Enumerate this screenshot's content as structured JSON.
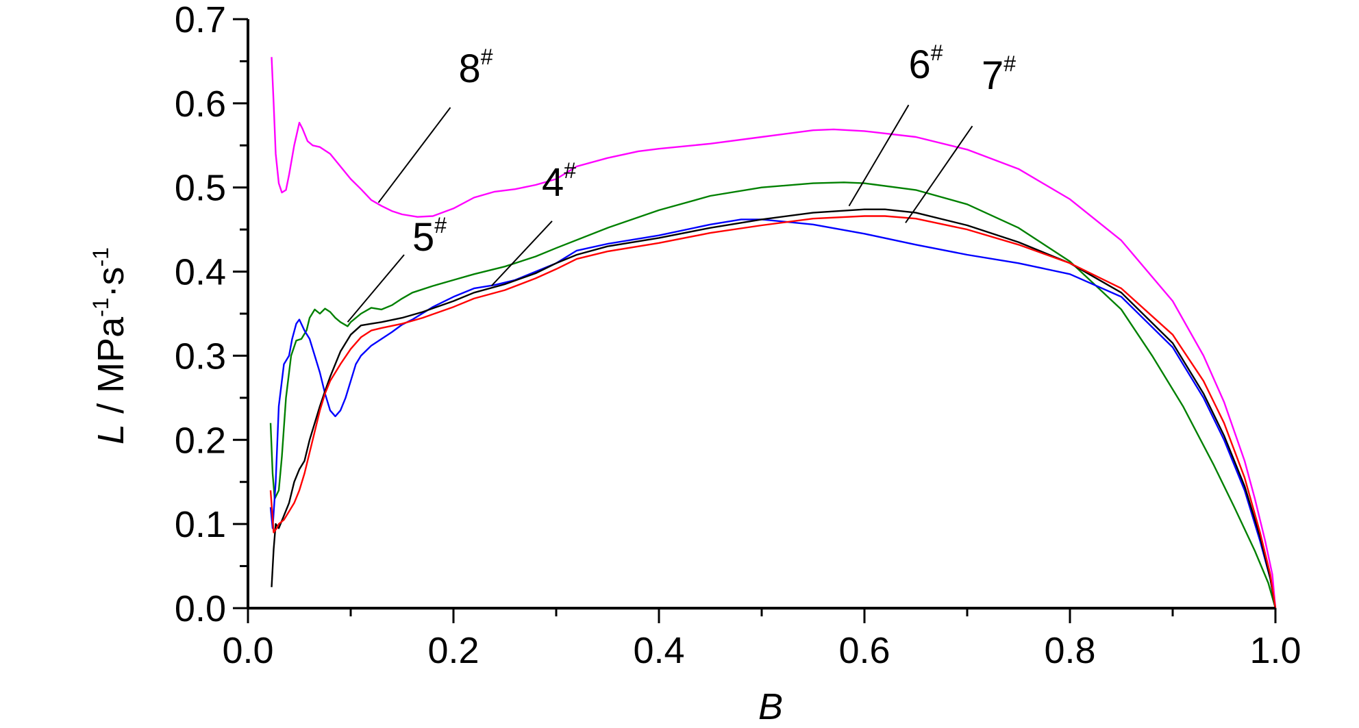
{
  "chart_data": {
    "type": "line",
    "xlabel": "B",
    "ylabel": {
      "var": "L",
      "sep": " / MPa",
      "exp1": "-1",
      "mid": "·s",
      "exp2": "-1"
    },
    "xlim": [
      0.0,
      1.0
    ],
    "ylim": [
      0.0,
      0.7
    ],
    "xticks": [
      "0.0",
      "0.2",
      "0.4",
      "0.6",
      "0.8",
      "1.0"
    ],
    "yticks": [
      "0.0",
      "0.1",
      "0.2",
      "0.3",
      "0.4",
      "0.5",
      "0.6",
      "0.7"
    ],
    "grid": false,
    "legend": "none",
    "series": [
      {
        "name": "8#",
        "label_num": "8",
        "label_sup": "#",
        "color": "#ff00ff",
        "label_pos": [
          0.205,
          0.625
        ],
        "leader": [
          [
            0.197,
            0.595
          ],
          [
            0.127,
            0.482
          ]
        ],
        "points": [
          [
            0.023,
            0.655
          ],
          [
            0.025,
            0.6
          ],
          [
            0.027,
            0.54
          ],
          [
            0.03,
            0.505
          ],
          [
            0.033,
            0.494
          ],
          [
            0.037,
            0.497
          ],
          [
            0.04,
            0.515
          ],
          [
            0.045,
            0.55
          ],
          [
            0.05,
            0.577
          ],
          [
            0.053,
            0.57
          ],
          [
            0.058,
            0.555
          ],
          [
            0.063,
            0.55
          ],
          [
            0.07,
            0.548
          ],
          [
            0.08,
            0.54
          ],
          [
            0.09,
            0.525
          ],
          [
            0.1,
            0.51
          ],
          [
            0.11,
            0.498
          ],
          [
            0.12,
            0.485
          ],
          [
            0.13,
            0.478
          ],
          [
            0.14,
            0.472
          ],
          [
            0.15,
            0.468
          ],
          [
            0.165,
            0.465
          ],
          [
            0.18,
            0.466
          ],
          [
            0.2,
            0.475
          ],
          [
            0.22,
            0.488
          ],
          [
            0.24,
            0.495
          ],
          [
            0.26,
            0.498
          ],
          [
            0.28,
            0.503
          ],
          [
            0.3,
            0.51
          ],
          [
            0.32,
            0.525
          ],
          [
            0.35,
            0.535
          ],
          [
            0.38,
            0.543
          ],
          [
            0.4,
            0.546
          ],
          [
            0.45,
            0.552
          ],
          [
            0.5,
            0.56
          ],
          [
            0.55,
            0.568
          ],
          [
            0.57,
            0.569
          ],
          [
            0.6,
            0.567
          ],
          [
            0.65,
            0.56
          ],
          [
            0.7,
            0.545
          ],
          [
            0.75,
            0.522
          ],
          [
            0.8,
            0.486
          ],
          [
            0.85,
            0.437
          ],
          [
            0.9,
            0.365
          ],
          [
            0.93,
            0.3
          ],
          [
            0.95,
            0.245
          ],
          [
            0.97,
            0.175
          ],
          [
            0.98,
            0.13
          ],
          [
            0.99,
            0.08
          ],
          [
            0.997,
            0.04
          ],
          [
            1.0,
            0.0
          ]
        ]
      },
      {
        "name": "5#",
        "label_num": "5",
        "label_sup": "#",
        "color": "#008000",
        "label_pos": [
          0.16,
          0.425
        ],
        "leader": [
          [
            0.152,
            0.42
          ],
          [
            0.097,
            0.34
          ]
        ],
        "points": [
          [
            0.022,
            0.22
          ],
          [
            0.024,
            0.16
          ],
          [
            0.026,
            0.13
          ],
          [
            0.03,
            0.14
          ],
          [
            0.033,
            0.18
          ],
          [
            0.037,
            0.25
          ],
          [
            0.042,
            0.3
          ],
          [
            0.047,
            0.318
          ],
          [
            0.052,
            0.32
          ],
          [
            0.057,
            0.33
          ],
          [
            0.06,
            0.345
          ],
          [
            0.065,
            0.355
          ],
          [
            0.07,
            0.35
          ],
          [
            0.075,
            0.356
          ],
          [
            0.08,
            0.352
          ],
          [
            0.085,
            0.345
          ],
          [
            0.09,
            0.34
          ],
          [
            0.097,
            0.335
          ],
          [
            0.1,
            0.34
          ],
          [
            0.11,
            0.35
          ],
          [
            0.12,
            0.357
          ],
          [
            0.13,
            0.355
          ],
          [
            0.14,
            0.36
          ],
          [
            0.15,
            0.368
          ],
          [
            0.16,
            0.375
          ],
          [
            0.18,
            0.383
          ],
          [
            0.2,
            0.39
          ],
          [
            0.22,
            0.397
          ],
          [
            0.25,
            0.406
          ],
          [
            0.28,
            0.418
          ],
          [
            0.3,
            0.428
          ],
          [
            0.35,
            0.452
          ],
          [
            0.4,
            0.473
          ],
          [
            0.45,
            0.49
          ],
          [
            0.5,
            0.5
          ],
          [
            0.55,
            0.505
          ],
          [
            0.58,
            0.506
          ],
          [
            0.6,
            0.505
          ],
          [
            0.65,
            0.497
          ],
          [
            0.7,
            0.48
          ],
          [
            0.75,
            0.452
          ],
          [
            0.8,
            0.412
          ],
          [
            0.85,
            0.355
          ],
          [
            0.88,
            0.3
          ],
          [
            0.91,
            0.24
          ],
          [
            0.94,
            0.17
          ],
          [
            0.96,
            0.12
          ],
          [
            0.98,
            0.068
          ],
          [
            0.993,
            0.03
          ],
          [
            1.0,
            0.0
          ]
        ]
      },
      {
        "name": "4#",
        "label_num": "4",
        "label_sup": "#",
        "color": "#0000ff",
        "label_pos": [
          0.286,
          0.49
        ],
        "leader": [
          [
            0.296,
            0.46
          ],
          [
            0.237,
            0.383
          ]
        ],
        "points": [
          [
            0.022,
            0.12
          ],
          [
            0.024,
            0.095
          ],
          [
            0.027,
            0.15
          ],
          [
            0.03,
            0.24
          ],
          [
            0.035,
            0.29
          ],
          [
            0.04,
            0.3
          ],
          [
            0.043,
            0.32
          ],
          [
            0.047,
            0.338
          ],
          [
            0.05,
            0.343
          ],
          [
            0.055,
            0.33
          ],
          [
            0.06,
            0.32
          ],
          [
            0.065,
            0.3
          ],
          [
            0.07,
            0.28
          ],
          [
            0.075,
            0.255
          ],
          [
            0.08,
            0.235
          ],
          [
            0.085,
            0.228
          ],
          [
            0.09,
            0.235
          ],
          [
            0.095,
            0.25
          ],
          [
            0.1,
            0.27
          ],
          [
            0.105,
            0.29
          ],
          [
            0.11,
            0.3
          ],
          [
            0.12,
            0.312
          ],
          [
            0.13,
            0.32
          ],
          [
            0.14,
            0.328
          ],
          [
            0.15,
            0.337
          ],
          [
            0.16,
            0.343
          ],
          [
            0.18,
            0.358
          ],
          [
            0.2,
            0.37
          ],
          [
            0.22,
            0.38
          ],
          [
            0.24,
            0.384
          ],
          [
            0.26,
            0.39
          ],
          [
            0.28,
            0.4
          ],
          [
            0.3,
            0.41
          ],
          [
            0.32,
            0.425
          ],
          [
            0.35,
            0.433
          ],
          [
            0.4,
            0.443
          ],
          [
            0.45,
            0.456
          ],
          [
            0.48,
            0.462
          ],
          [
            0.5,
            0.462
          ],
          [
            0.55,
            0.456
          ],
          [
            0.6,
            0.445
          ],
          [
            0.65,
            0.432
          ],
          [
            0.7,
            0.42
          ],
          [
            0.75,
            0.41
          ],
          [
            0.8,
            0.397
          ],
          [
            0.85,
            0.37
          ],
          [
            0.9,
            0.31
          ],
          [
            0.93,
            0.25
          ],
          [
            0.95,
            0.2
          ],
          [
            0.97,
            0.14
          ],
          [
            0.985,
            0.08
          ],
          [
            0.995,
            0.035
          ],
          [
            1.0,
            0.0
          ]
        ]
      },
      {
        "name": "6#",
        "label_num": "6",
        "label_sup": "#",
        "color": "#000000",
        "label_pos": [
          0.643,
          0.63
        ],
        "leader": [
          [
            0.643,
            0.598
          ],
          [
            0.585,
            0.478
          ]
        ],
        "points": [
          [
            0.023,
            0.025
          ],
          [
            0.025,
            0.07
          ],
          [
            0.027,
            0.1
          ],
          [
            0.03,
            0.095
          ],
          [
            0.035,
            0.11
          ],
          [
            0.04,
            0.125
          ],
          [
            0.045,
            0.15
          ],
          [
            0.05,
            0.165
          ],
          [
            0.055,
            0.175
          ],
          [
            0.06,
            0.2
          ],
          [
            0.065,
            0.22
          ],
          [
            0.07,
            0.24
          ],
          [
            0.075,
            0.258
          ],
          [
            0.08,
            0.275
          ],
          [
            0.085,
            0.29
          ],
          [
            0.09,
            0.305
          ],
          [
            0.1,
            0.325
          ],
          [
            0.11,
            0.336
          ],
          [
            0.12,
            0.338
          ],
          [
            0.13,
            0.34
          ],
          [
            0.15,
            0.345
          ],
          [
            0.17,
            0.352
          ],
          [
            0.2,
            0.365
          ],
          [
            0.22,
            0.375
          ],
          [
            0.25,
            0.385
          ],
          [
            0.28,
            0.398
          ],
          [
            0.3,
            0.41
          ],
          [
            0.32,
            0.42
          ],
          [
            0.35,
            0.43
          ],
          [
            0.4,
            0.44
          ],
          [
            0.45,
            0.452
          ],
          [
            0.5,
            0.462
          ],
          [
            0.55,
            0.47
          ],
          [
            0.6,
            0.474
          ],
          [
            0.62,
            0.474
          ],
          [
            0.65,
            0.47
          ],
          [
            0.7,
            0.455
          ],
          [
            0.75,
            0.435
          ],
          [
            0.8,
            0.41
          ],
          [
            0.85,
            0.375
          ],
          [
            0.9,
            0.315
          ],
          [
            0.93,
            0.255
          ],
          [
            0.95,
            0.205
          ],
          [
            0.97,
            0.145
          ],
          [
            0.985,
            0.085
          ],
          [
            0.995,
            0.035
          ],
          [
            1.0,
            0.0
          ]
        ]
      },
      {
        "name": "7#",
        "label_num": "7",
        "label_sup": "#",
        "color": "#ff0000",
        "label_pos": [
          0.714,
          0.617
        ],
        "leader": [
          [
            0.705,
            0.573
          ],
          [
            0.64,
            0.458
          ]
        ],
        "points": [
          [
            0.022,
            0.14
          ],
          [
            0.025,
            0.09
          ],
          [
            0.028,
            0.095
          ],
          [
            0.03,
            0.1
          ],
          [
            0.035,
            0.105
          ],
          [
            0.04,
            0.115
          ],
          [
            0.045,
            0.125
          ],
          [
            0.05,
            0.14
          ],
          [
            0.055,
            0.16
          ],
          [
            0.06,
            0.185
          ],
          [
            0.065,
            0.21
          ],
          [
            0.07,
            0.235
          ],
          [
            0.075,
            0.255
          ],
          [
            0.08,
            0.27
          ],
          [
            0.085,
            0.28
          ],
          [
            0.09,
            0.29
          ],
          [
            0.1,
            0.308
          ],
          [
            0.11,
            0.322
          ],
          [
            0.12,
            0.33
          ],
          [
            0.13,
            0.333
          ],
          [
            0.15,
            0.338
          ],
          [
            0.17,
            0.345
          ],
          [
            0.2,
            0.358
          ],
          [
            0.22,
            0.368
          ],
          [
            0.25,
            0.378
          ],
          [
            0.28,
            0.392
          ],
          [
            0.3,
            0.403
          ],
          [
            0.32,
            0.415
          ],
          [
            0.35,
            0.424
          ],
          [
            0.4,
            0.434
          ],
          [
            0.45,
            0.446
          ],
          [
            0.5,
            0.455
          ],
          [
            0.55,
            0.463
          ],
          [
            0.6,
            0.466
          ],
          [
            0.62,
            0.466
          ],
          [
            0.65,
            0.463
          ],
          [
            0.7,
            0.45
          ],
          [
            0.75,
            0.432
          ],
          [
            0.8,
            0.41
          ],
          [
            0.85,
            0.38
          ],
          [
            0.9,
            0.325
          ],
          [
            0.93,
            0.27
          ],
          [
            0.95,
            0.22
          ],
          [
            0.97,
            0.155
          ],
          [
            0.985,
            0.09
          ],
          [
            0.995,
            0.04
          ],
          [
            1.0,
            0.0
          ]
        ]
      }
    ]
  }
}
